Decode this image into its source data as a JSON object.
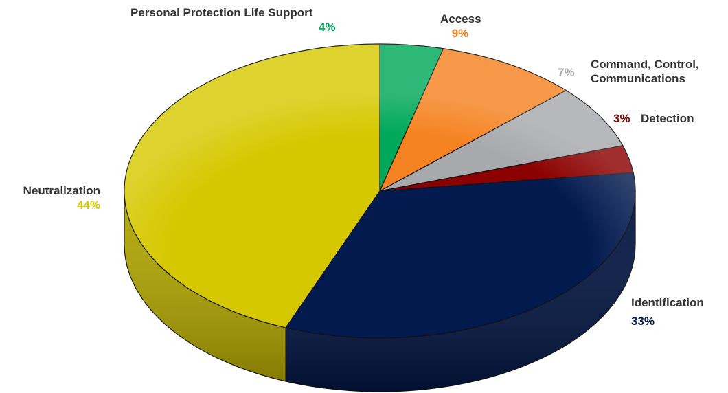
{
  "chart_data": {
    "type": "pie",
    "style": "3d",
    "slices": [
      {
        "label": "Personal Protection Life Support",
        "value": 4,
        "display": "4%",
        "color": "#00a859"
      },
      {
        "label": "Access",
        "value": 9,
        "display": "9%",
        "color": "#f58220"
      },
      {
        "label": "Command, Control, Communications",
        "label_lines": [
          "Command, Control,",
          "Communications"
        ],
        "value": 7,
        "display": "7%",
        "color": "#a7a9ac"
      },
      {
        "label": "Detection",
        "value": 3,
        "display": "3%",
        "color": "#8b0000"
      },
      {
        "label": "Identification",
        "value": 33,
        "display": "33%",
        "color": "#031a4f"
      },
      {
        "label": "Neutralization",
        "value": 44,
        "display": "44%",
        "color": "#d6c800"
      }
    ],
    "legend": "none",
    "label_text_color": "#333333"
  }
}
